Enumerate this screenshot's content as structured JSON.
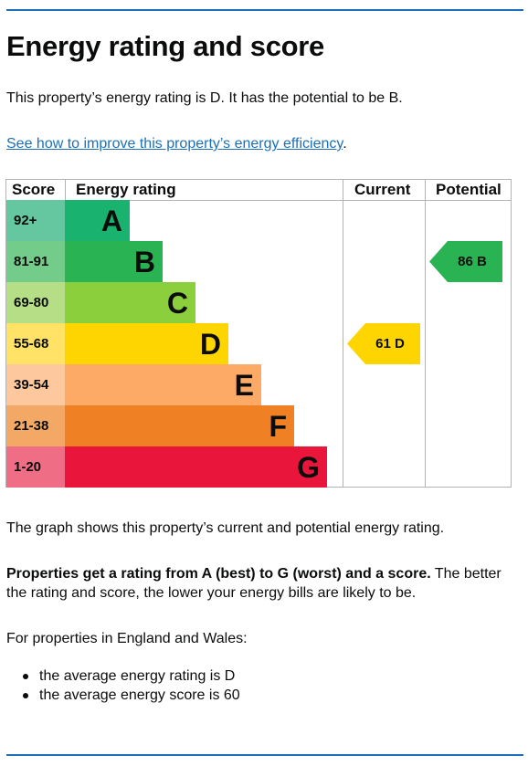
{
  "heading": "Energy rating and score",
  "intro": "This property’s energy rating is D. It has the potential to be B.",
  "improve_link": "See how to improve this property’s energy efficiency",
  "improve_suffix": ".",
  "chart_data": {
    "type": "table",
    "headers": {
      "score": "Score",
      "rating": "Energy rating",
      "current": "Current",
      "potential": "Potential"
    },
    "bands": [
      {
        "score": "92+",
        "letter": "A",
        "color": "#19b26e",
        "score_bg": "#64c7a0"
      },
      {
        "score": "81-91",
        "letter": "B",
        "color": "#29b353",
        "score_bg": "#73cc8a"
      },
      {
        "score": "69-80",
        "letter": "C",
        "color": "#8ccf3c",
        "score_bg": "#b6de86"
      },
      {
        "score": "55-68",
        "letter": "D",
        "color": "#ffd500",
        "score_bg": "#ffe266"
      },
      {
        "score": "39-54",
        "letter": "E",
        "color": "#fcaa65",
        "score_bg": "#fdc89d"
      },
      {
        "score": "21-38",
        "letter": "F",
        "color": "#ef8023",
        "score_bg": "#f3a965"
      },
      {
        "score": "1-20",
        "letter": "G",
        "color": "#e9153b",
        "score_bg": "#f06e85"
      }
    ],
    "current": {
      "score": 61,
      "letter": "D",
      "label": "61 D",
      "color": "#ffd500"
    },
    "potential": {
      "score": 86,
      "letter": "B",
      "label": "86 B",
      "color": "#29b353"
    }
  },
  "graph_note": "The graph shows this property’s current and potential energy rating.",
  "rating_bold": "Properties get a rating from A (best) to G (worst) and a score.",
  "rating_rest": " The better the rating and score, the lower your energy bills are likely to be.",
  "region_intro": "For properties in England and Wales:",
  "bullets": [
    "the average energy rating is D",
    "the average energy score is 60"
  ]
}
